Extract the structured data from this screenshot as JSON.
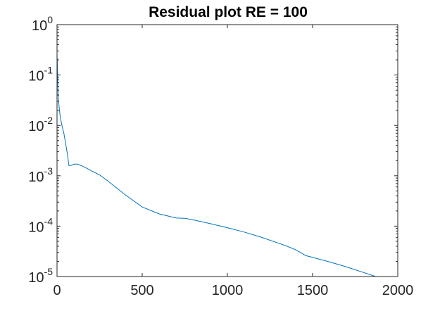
{
  "chart_data": {
    "type": "line",
    "title": "Residual plot RE = 100",
    "xlabel": "",
    "ylabel": "",
    "xlim": [
      0,
      2000
    ],
    "ylim": [
      1e-05,
      1
    ],
    "yscale": "log",
    "grid": false,
    "x_ticks": [
      {
        "value": 0,
        "label": "0"
      },
      {
        "value": 500,
        "label": "500"
      },
      {
        "value": 1000,
        "label": "1000"
      },
      {
        "value": 1500,
        "label": "1500"
      },
      {
        "value": 2000,
        "label": "2000"
      }
    ],
    "y_ticks": [
      {
        "value": 1,
        "base": "10",
        "exp": "0"
      },
      {
        "value": 0.1,
        "base": "10",
        "exp": "-1"
      },
      {
        "value": 0.01,
        "base": "10",
        "exp": "-2"
      },
      {
        "value": 0.001,
        "base": "10",
        "exp": "-3"
      },
      {
        "value": 0.0001,
        "base": "10",
        "exp": "-4"
      },
      {
        "value": 1e-05,
        "base": "10",
        "exp": "-5"
      }
    ],
    "series": [
      {
        "color": "#0072bd",
        "x": [
          0,
          1,
          2,
          4,
          6,
          10,
          15,
          20,
          30,
          40,
          50,
          60,
          70,
          80,
          100,
          120,
          150,
          180,
          200,
          250,
          300,
          400,
          500,
          600,
          700,
          750,
          800,
          900,
          1000,
          1100,
          1200,
          1300,
          1350,
          1400,
          1460,
          1500,
          1600,
          1700,
          1800,
          1870
        ],
        "y": [
          0.12,
          0.22,
          0.15,
          0.08,
          0.045,
          0.028,
          0.019,
          0.014,
          0.0095,
          0.007,
          0.0045,
          0.0028,
          0.0016,
          0.0016,
          0.0017,
          0.0017,
          0.00155,
          0.00138,
          0.00126,
          0.00104,
          0.00078,
          0.00042,
          0.00024,
          0.000175,
          0.000145,
          0.000143,
          0.000133,
          0.000112,
          9.3e-05,
          7.6e-05,
          6e-05,
          4.6e-05,
          4e-05,
          3.4e-05,
          2.6e-05,
          2.4e-05,
          1.95e-05,
          1.55e-05,
          1.2e-05,
          1e-05
        ]
      }
    ]
  }
}
